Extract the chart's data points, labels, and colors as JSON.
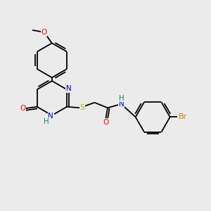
{
  "bg_color": "#ebebeb",
  "bond_color": "#000000",
  "O_color": "#ff0000",
  "N_color": "#0000cc",
  "S_color": "#bbaa00",
  "Br_color": "#cc8800",
  "H_color": "#008888",
  "font_size": 7.5,
  "lw": 1.3,
  "doff": 0.09,
  "figsize": [
    3.0,
    3.0
  ],
  "dpi": 100,
  "xlim": [
    0,
    10
  ],
  "ylim": [
    0,
    10
  ]
}
